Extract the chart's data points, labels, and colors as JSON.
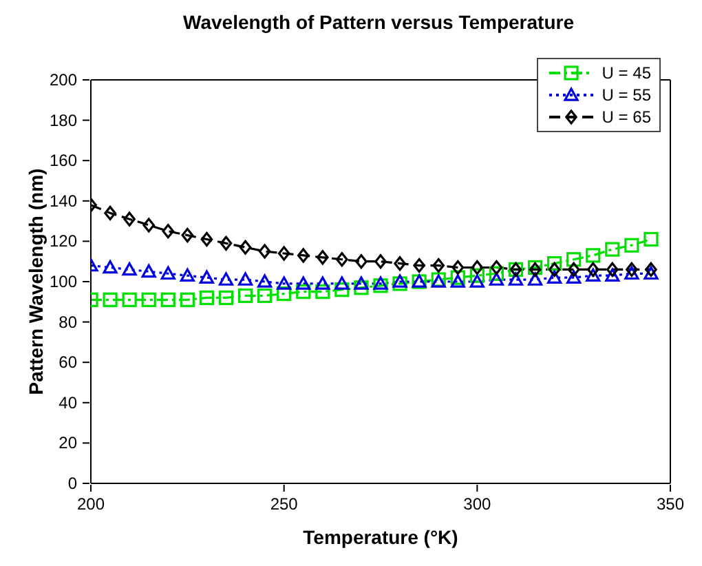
{
  "chart_data": {
    "type": "line",
    "title": "Wavelength of Pattern versus Temperature",
    "xlabel": "Temperature (°K)",
    "ylabel": "Pattern Wavelength (nm)",
    "x": [
      200,
      205,
      210,
      215,
      220,
      225,
      230,
      235,
      240,
      245,
      250,
      255,
      260,
      265,
      270,
      275,
      280,
      285,
      290,
      295,
      300,
      305,
      310,
      315,
      320,
      325,
      330,
      335,
      340,
      345
    ],
    "series": [
      {
        "name": "U = 45",
        "color": "#00e000",
        "marker": "square",
        "line_style": "dashdot",
        "values": [
          91,
          91,
          91,
          91,
          91,
          91,
          92,
          92,
          93,
          93,
          94,
          95,
          95,
          96,
          97,
          98,
          99,
          100,
          101,
          102,
          103,
          104,
          106,
          107,
          109,
          111,
          113,
          116,
          118,
          121
        ]
      },
      {
        "name": "U = 55",
        "color": "#0000e0",
        "marker": "triangle",
        "line_style": "dotted",
        "values": [
          108,
          107,
          106,
          105,
          104,
          103,
          102,
          101,
          101,
          100,
          99,
          99,
          99,
          99,
          99,
          99,
          100,
          100,
          100,
          100,
          100,
          101,
          101,
          101,
          102,
          102,
          103,
          103,
          104,
          104
        ]
      },
      {
        "name": "U = 65",
        "color": "#000000",
        "marker": "diamond",
        "line_style": "dashed",
        "values": [
          138,
          134,
          131,
          128,
          125,
          123,
          121,
          119,
          117,
          115,
          114,
          113,
          112,
          111,
          110,
          110,
          109,
          108,
          108,
          107,
          107,
          107,
          106,
          106,
          106,
          106,
          106,
          106,
          106,
          106
        ]
      }
    ],
    "xlim": [
      200,
      350
    ],
    "xticks": [
      200,
      250,
      300,
      350
    ],
    "ylim": [
      0,
      200
    ],
    "yticks": [
      0,
      20,
      40,
      60,
      80,
      100,
      120,
      140,
      160,
      180,
      200
    ],
    "grid": false,
    "legend": "top right"
  }
}
